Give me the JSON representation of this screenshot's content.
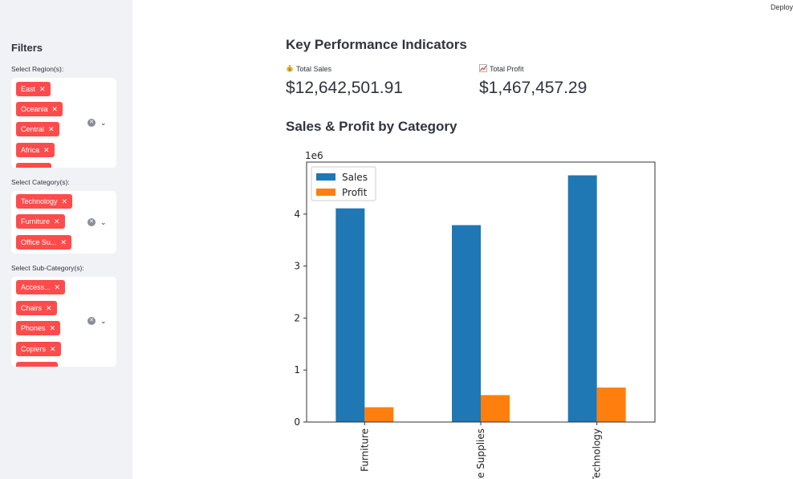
{
  "header": {
    "deploy_label": "Deploy"
  },
  "sidebar": {
    "title": "Filters",
    "region": {
      "label": "Select Region(s):",
      "tags": [
        "East",
        "Oceania",
        "Central",
        "Africa"
      ]
    },
    "category": {
      "label": "Select Category(s):",
      "tags": [
        "Technology",
        "Furniture",
        "Office Su..."
      ]
    },
    "subcategory": {
      "label": "Select Sub-Category(s):",
      "tags": [
        "Access...",
        "Chairs",
        "Phones",
        "Copiers"
      ]
    }
  },
  "main": {
    "kpi_heading": "Key Performance Indicators",
    "total_sales": {
      "label": "Total Sales",
      "value": "$12,642,501.91",
      "icon": "money-bag-icon"
    },
    "total_profit": {
      "label": "Total Profit",
      "value": "$1,467,457.29",
      "icon": "chart-increasing-icon"
    },
    "chart_heading": "Sales & Profit by Category"
  },
  "colors": {
    "accent": "#ff4b4b",
    "sales": "#1f77b4",
    "profit": "#ff7f0e",
    "sidebar_bg": "#f0f2f6"
  },
  "chart_data": {
    "type": "bar",
    "categories": [
      "Furniture",
      "Office Supplies",
      "Technology"
    ],
    "series": [
      {
        "name": "Sales",
        "values": [
          4110000,
          3787000,
          4745000
        ]
      },
      {
        "name": "Profit",
        "values": [
          285000,
          518000,
          663000
        ]
      }
    ],
    "offset_label": "1e6",
    "yticks": [
      0,
      1,
      2,
      3,
      4
    ],
    "ylim": [
      0,
      5000000
    ],
    "legend": "top-left"
  }
}
